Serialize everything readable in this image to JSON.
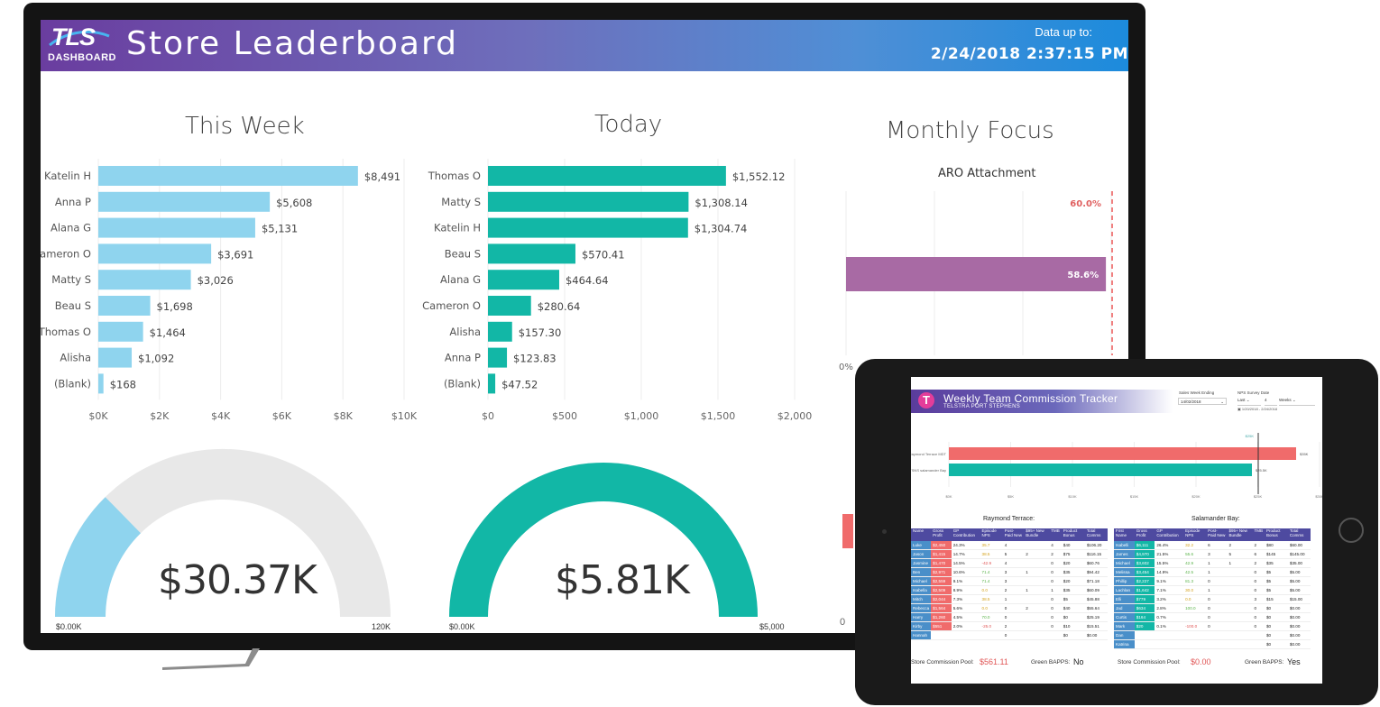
{
  "dashboard": {
    "logo_main": "TLS",
    "logo_sub": "DASHBOARD",
    "title": "Store Leaderboard",
    "data_up_label": "Data up to:",
    "data_timestamp": "2/24/2018 2:37:15 PM"
  },
  "colors": {
    "banner_start": "#6a3d9f",
    "banner_end": "#1c8bdc",
    "week_bar": "#8fd4ee",
    "today_bar": "#12b7a6",
    "aro_bar": "#a86aa4",
    "target_line": "#f08080",
    "gauge_track": "#e8e8e8"
  },
  "panels": {
    "this_week_title": "This Week",
    "today_title": "Today",
    "monthly_title": "Monthly Focus",
    "aro_title": "ARO Attachment"
  },
  "chart_data": [
    {
      "type": "bar",
      "orientation": "horizontal",
      "title": "This Week",
      "categories": [
        "Katelin H",
        "Anna P",
        "Alana G",
        "Cameron O",
        "Matty S",
        "Beau S",
        "Thomas O",
        "Alisha",
        "(Blank)"
      ],
      "values": [
        8491,
        5608,
        5131,
        3691,
        3026,
        1698,
        1464,
        1092,
        168
      ],
      "value_labels": [
        "$8,491",
        "$5,608",
        "$5,131",
        "$3,691",
        "$3,026",
        "$1,698",
        "$1,464",
        "$1,092",
        "$168"
      ],
      "xlim": [
        0,
        10000
      ],
      "ticks": [
        "$0K",
        "$2K",
        "$4K",
        "$6K",
        "$8K",
        "$10K"
      ],
      "grid": true
    },
    {
      "type": "bar",
      "orientation": "horizontal",
      "title": "Today",
      "categories": [
        "Thomas O",
        "Matty S",
        "Katelin H",
        "Beau S",
        "Alana G",
        "Cameron O",
        "Alisha",
        "Anna P",
        "(Blank)"
      ],
      "values": [
        1552.12,
        1308.14,
        1304.74,
        570.41,
        464.64,
        280.64,
        157.3,
        123.83,
        47.52
      ],
      "value_labels": [
        "$1,552.12",
        "$1,308.14",
        "$1,304.74",
        "$570.41",
        "$464.64",
        "$280.64",
        "$157.30",
        "$123.83",
        "$47.52"
      ],
      "xlim": [
        0,
        2000
      ],
      "ticks": [
        "$0",
        "$500",
        "$1,000",
        "$1,500",
        "$2,000"
      ],
      "grid": true
    },
    {
      "type": "bar",
      "orientation": "horizontal",
      "title": "ARO Attachment",
      "values": [
        58.6
      ],
      "value_labels": [
        "58.6%"
      ],
      "target": 60.0,
      "target_label": "60.0%",
      "axis_start_label": "0%",
      "grid": true
    }
  ],
  "gauges": {
    "week": {
      "value": 30370,
      "max": 120000,
      "value_text": "$30.37K",
      "min_label": "$0.00K",
      "max_label": "120K"
    },
    "today": {
      "value": 5810,
      "max": 5000,
      "value_text": "$5.81K",
      "min_label": "$0.00K",
      "max_label": "$5,000"
    },
    "partial_axis_label": "0"
  },
  "tablet": {
    "title": "Weekly Team Commission Tracker",
    "subtitle": "TELSTRA PORT STEPHENS",
    "sales_week_label": "Sales Week Ending",
    "sales_week_value": "14/02/2018",
    "nps_label": "NPS Survey Date",
    "nps_from": "Last",
    "nps_n": "4",
    "nps_unit": "Weeks",
    "nps_range": "1/20/2018 - 2/24/2018",
    "compare_chart": {
      "store1": "Raymond Terrace MDT",
      "store2": "TSNS salamander Bay",
      "bar1_label": "$35K",
      "bar2_label": "$25.5K",
      "target_label": "$25K",
      "ticks": [
        "$0K",
        "$5K",
        "$10K",
        "$15K",
        "$20K",
        "$25K",
        "$30K"
      ]
    },
    "table_left": {
      "title": "Raymond Terrace:",
      "headers": [
        "Name",
        "Gross Profit",
        "GP Contribution",
        "Episode NPS",
        "Post-Paid New",
        "$95+ New Bundle",
        "TMB",
        "Product Bonus",
        "Total Comms"
      ],
      "rows": [
        [
          "Luke",
          "$2,450",
          "24.3%",
          "35.7",
          "4",
          "",
          "4",
          "$40",
          "$106.20"
        ],
        [
          "Jason",
          "$1,415",
          "14.7%",
          "38.5",
          "5",
          "2",
          "2",
          "$75",
          "$116.15"
        ],
        [
          "Jasmine",
          "$1,470",
          "14.5%",
          "-42.9",
          "4",
          "",
          "0",
          "$20",
          "$60.76"
        ],
        [
          "Ben",
          "$2,971",
          "10.6%",
          "71.4",
          "3",
          "1",
          "0",
          "$35",
          "$94.42"
        ],
        [
          "Michael",
          "$2,559",
          "9.1%",
          "71.4",
          "3",
          "",
          "0",
          "$20",
          "$71.18"
        ],
        [
          "Isabella",
          "$2,509",
          "8.9%",
          "0.0",
          "2",
          "1",
          "1",
          "$35",
          "$60.09"
        ],
        [
          "Mitch",
          "$2,044",
          "7.3%",
          "38.5",
          "1",
          "",
          "0",
          "$5",
          "$45.88"
        ],
        [
          "Rebecca",
          "$1,564",
          "5.6%",
          "0.0",
          "0",
          "2",
          "0",
          "$40",
          "$55.64"
        ],
        [
          "Harry",
          "$1,260",
          "4.5%",
          "70.0",
          "0",
          "",
          "0",
          "$0",
          "$25.19"
        ],
        [
          "Kirby",
          "$551",
          "2.0%",
          "-25.0",
          "2",
          "",
          "0",
          "$10",
          "$15.51"
        ],
        [
          "Hannah",
          "",
          "",
          "",
          "0",
          "",
          "",
          "$0",
          "$0.00"
        ]
      ],
      "pool_label": "Store Commission Pool:",
      "pool_value": "$561.11",
      "bapps_label": "Green BAPPS:",
      "bapps_value": "No"
    },
    "table_right": {
      "title": "Salamander Bay:",
      "headers": [
        "First Name",
        "Gross Profit",
        "GP Contribution",
        "Episode NPS",
        "Post-Paid New",
        "$95+ New Bundle",
        "TMB",
        "Product Bonus",
        "Total Comms"
      ],
      "rows": [
        [
          "Isabelli",
          "$6,111",
          "26.4%",
          "32.2",
          "6",
          "2",
          "2",
          "$80",
          "$60.00"
        ],
        [
          "James",
          "$4,970",
          "21.5%",
          "55.6",
          "3",
          "5",
          "6",
          "$145",
          "$145.00"
        ],
        [
          "Michael",
          "$3,602",
          "15.5%",
          "42.9",
          "1",
          "1",
          "2",
          "$35",
          "$35.00"
        ],
        [
          "Melissa",
          "$3,454",
          "14.9%",
          "42.5",
          "1",
          "",
          "0",
          "$5",
          "$5.00"
        ],
        [
          "Phillip",
          "$2,227",
          "9.1%",
          "81.3",
          "0",
          "",
          "0",
          "$5",
          "$5.00"
        ],
        [
          "Lachlan",
          "$1,642",
          "7.1%",
          "30.0",
          "1",
          "",
          "0",
          "$5",
          "$5.00"
        ],
        [
          "Elli",
          "$779",
          "3.2%",
          "0.0",
          "0",
          "",
          "3",
          "$15",
          "$15.00"
        ],
        [
          "Jad",
          "$634",
          "2.8%",
          "100.0",
          "0",
          "",
          "0",
          "$0",
          "$0.00"
        ],
        [
          "Curtis",
          "$164",
          "0.7%",
          "",
          "0",
          "",
          "0",
          "$0",
          "$0.00"
        ],
        [
          "Mark",
          "$20",
          "0.1%",
          "-100.0",
          "0",
          "",
          "0",
          "$0",
          "$0.00"
        ],
        [
          "Dan",
          "",
          "",
          "",
          "",
          "",
          "",
          "$0",
          "$0.00"
        ],
        [
          "Katrina",
          "",
          "",
          "",
          "",
          "",
          "",
          "$0",
          "$0.00"
        ]
      ],
      "pool_label": "Store Commission Pool:",
      "pool_value": "$0.00",
      "bapps_label": "Green BAPPS:",
      "bapps_value": "Yes"
    }
  }
}
